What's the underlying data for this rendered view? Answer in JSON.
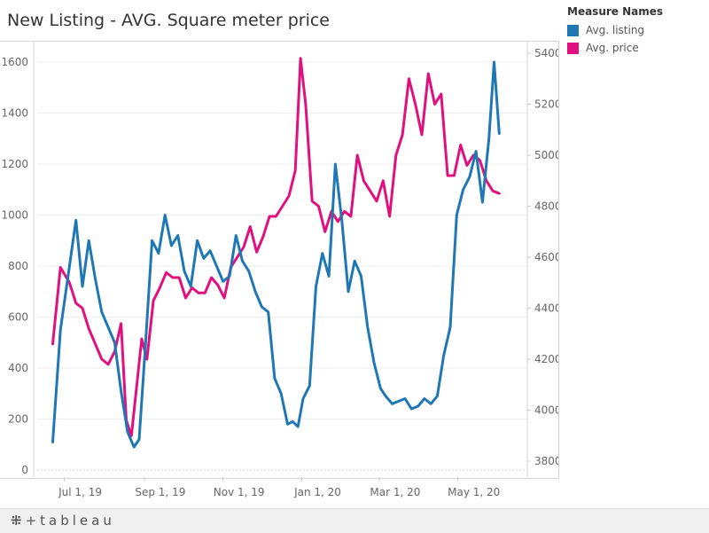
{
  "title": "New Listing - AVG. Square meter price",
  "legend": {
    "title": "Measure Names",
    "items": [
      {
        "label": "Avg. listing",
        "color": "#1f77b4"
      },
      {
        "label": "Avg. price",
        "color": "#e0107f"
      }
    ]
  },
  "footer": {
    "logo_mark": "⁜",
    "logo_text": "+tableau"
  },
  "chart_data": {
    "type": "line",
    "x_ticks": [
      "Jul 1, 19",
      "Sep 1, 19",
      "Nov 1, 19",
      "Jan 1, 20",
      "Mar 1, 20",
      "May 1, 20"
    ],
    "y_left_ticks": [
      "0",
      "200",
      "400",
      "600",
      "800",
      "1000",
      "1200",
      "1400",
      "1600"
    ],
    "y_right_ticks": [
      "3800",
      "4000",
      "4200",
      "4400",
      "4600",
      "4800",
      "5000",
      "5200",
      "5400"
    ],
    "ylim_left": [
      0,
      1600
    ],
    "ylim_right": [
      3800,
      5400
    ],
    "grid": true,
    "legend_position": "top-right",
    "series": [
      {
        "name": "Avg. listing",
        "axis": "left",
        "color": "#1f77b4",
        "x": [
          "2019-06-22",
          "2019-06-28",
          "2019-07-05",
          "2019-07-10",
          "2019-07-15",
          "2019-07-20",
          "2019-07-25",
          "2019-07-30",
          "2019-08-04",
          "2019-08-09",
          "2019-08-14",
          "2019-08-19",
          "2019-08-24",
          "2019-08-28",
          "2019-09-02",
          "2019-09-07",
          "2019-09-12",
          "2019-09-17",
          "2019-09-22",
          "2019-09-27",
          "2019-10-02",
          "2019-10-07",
          "2019-10-12",
          "2019-10-17",
          "2019-10-22",
          "2019-10-27",
          "2019-11-01",
          "2019-11-06",
          "2019-11-11",
          "2019-11-16",
          "2019-11-21",
          "2019-11-26",
          "2019-12-01",
          "2019-12-06",
          "2019-12-11",
          "2019-12-16",
          "2019-12-21",
          "2019-12-25",
          "2019-12-29",
          "2020-01-02",
          "2020-01-07",
          "2020-01-12",
          "2020-01-17",
          "2020-01-22",
          "2020-01-27",
          "2020-02-01",
          "2020-02-06",
          "2020-02-11",
          "2020-02-16",
          "2020-02-21",
          "2020-02-26",
          "2020-03-02",
          "2020-03-06",
          "2020-03-11",
          "2020-03-16",
          "2020-03-21",
          "2020-03-26",
          "2020-03-31",
          "2020-04-05",
          "2020-04-10",
          "2020-04-15",
          "2020-04-20",
          "2020-04-25",
          "2020-04-30",
          "2020-05-05",
          "2020-05-10",
          "2020-05-15",
          "2020-05-20",
          "2020-05-25",
          "2020-05-29",
          "2020-06-02"
        ],
        "values": [
          110,
          550,
          800,
          980,
          720,
          900,
          750,
          620,
          560,
          500,
          310,
          150,
          90,
          120,
          500,
          900,
          850,
          1000,
          880,
          920,
          780,
          720,
          900,
          830,
          860,
          800,
          740,
          760,
          920,
          820,
          780,
          700,
          640,
          620,
          360,
          300,
          180,
          190,
          170,
          280,
          330,
          720,
          850,
          760,
          1200,
          980,
          700,
          820,
          760,
          560,
          420,
          320,
          290,
          260,
          270,
          280,
          240,
          250,
          280,
          260,
          290,
          450,
          560,
          1000,
          1100,
          1150,
          1250,
          1050,
          1300,
          1600,
          1320
        ]
      },
      {
        "name": "Avg. price",
        "axis": "right",
        "color": "#e0107f",
        "x": [
          "2019-06-22",
          "2019-06-28",
          "2019-07-05",
          "2019-07-10",
          "2019-07-15",
          "2019-07-20",
          "2019-07-25",
          "2019-07-30",
          "2019-08-04",
          "2019-08-09",
          "2019-08-14",
          "2019-08-18",
          "2019-08-22",
          "2019-08-26",
          "2019-08-30",
          "2019-09-03",
          "2019-09-08",
          "2019-09-13",
          "2019-09-18",
          "2019-09-23",
          "2019-09-28",
          "2019-10-03",
          "2019-10-08",
          "2019-10-13",
          "2019-10-18",
          "2019-10-23",
          "2019-10-28",
          "2019-11-02",
          "2019-11-07",
          "2019-11-12",
          "2019-11-17",
          "2019-11-22",
          "2019-11-27",
          "2019-12-02",
          "2019-12-07",
          "2019-12-12",
          "2019-12-17",
          "2019-12-22",
          "2019-12-27",
          "2019-12-31",
          "2020-01-04",
          "2020-01-09",
          "2020-01-14",
          "2020-01-19",
          "2020-01-24",
          "2020-01-29",
          "2020-02-03",
          "2020-02-08",
          "2020-02-13",
          "2020-02-18",
          "2020-02-23",
          "2020-02-28",
          "2020-03-04",
          "2020-03-09",
          "2020-03-14",
          "2020-03-19",
          "2020-03-24",
          "2020-03-29",
          "2020-04-03",
          "2020-04-08",
          "2020-04-13",
          "2020-04-18",
          "2020-04-23",
          "2020-04-28",
          "2020-05-03",
          "2020-05-08",
          "2020-05-13",
          "2020-05-18",
          "2020-05-23",
          "2020-05-28",
          "2020-06-02"
        ],
        "values": [
          4260,
          4560,
          4500,
          4420,
          4400,
          4320,
          4260,
          4200,
          4180,
          4230,
          4340,
          3960,
          3900,
          4090,
          4280,
          4200,
          4430,
          4480,
          4540,
          4520,
          4520,
          4440,
          4480,
          4460,
          4460,
          4520,
          4490,
          4440,
          4560,
          4600,
          4640,
          4720,
          4620,
          4680,
          4760,
          4760,
          4800,
          4840,
          4940,
          5380,
          5200,
          4820,
          4800,
          4700,
          4780,
          4740,
          4780,
          4760,
          5000,
          4900,
          4860,
          4820,
          4900,
          4760,
          5000,
          5080,
          5300,
          5200,
          5080,
          5320,
          5200,
          5240,
          4920,
          4920,
          5040,
          4960,
          5000,
          4980,
          4900,
          4860,
          4850
        ]
      }
    ]
  }
}
